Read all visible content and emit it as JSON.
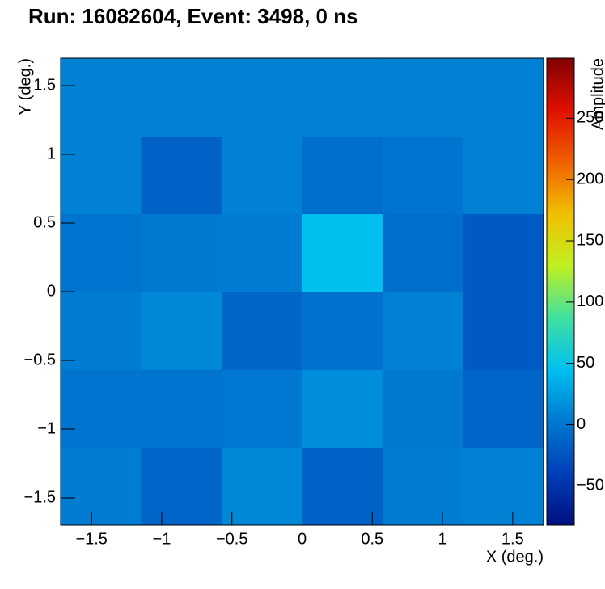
{
  "chart_data": {
    "type": "heatmap",
    "title": "Run: 16082604, Event: 3498, 0 ns",
    "x_label": "X (deg.)",
    "y_label": "Y (deg.)",
    "z_label": "Amplitude",
    "xbins": [
      -1.72,
      -1.147,
      -0.573,
      0,
      0.573,
      1.147,
      1.72
    ],
    "ybins": [
      -1.7,
      -1.133,
      -0.567,
      0,
      0.567,
      1.133,
      1.7
    ],
    "values": [
      [
        5,
        -12,
        12,
        -15,
        5,
        8
      ],
      [
        0,
        0,
        2,
        15,
        3,
        -12
      ],
      [
        5,
        12,
        -10,
        -3,
        8,
        -20
      ],
      [
        0,
        3,
        5,
        45,
        -5,
        -20
      ],
      [
        8,
        -15,
        8,
        -5,
        0,
        8
      ],
      [
        8,
        8,
        8,
        8,
        8,
        8
      ]
    ],
    "xlim": [
      -1.72,
      1.72
    ],
    "ylim": [
      -1.7,
      1.7
    ],
    "zlim": [
      -82,
      299
    ],
    "xticks": [
      {
        "value": -1.5,
        "label": "−1.5"
      },
      {
        "value": -1,
        "label": "−1"
      },
      {
        "value": -0.5,
        "label": "−0.5"
      },
      0,
      0.5,
      1,
      1.5
    ],
    "yticks": [
      {
        "value": -1.5,
        "label": "−1.5"
      },
      {
        "value": -1,
        "label": "−1"
      },
      {
        "value": -0.5,
        "label": "−0.5"
      },
      0,
      0.5,
      1,
      1.5
    ],
    "zticks": [
      {
        "value": -50,
        "label": "−50"
      },
      0,
      50,
      100,
      150,
      200,
      250
    ],
    "colormap": [
      "#000f80",
      "#0040b8",
      "#0078d0",
      "#00c0f0",
      "#40e0a0",
      "#c0f020",
      "#f0c000",
      "#f06000",
      "#e01000",
      "#800000"
    ]
  }
}
